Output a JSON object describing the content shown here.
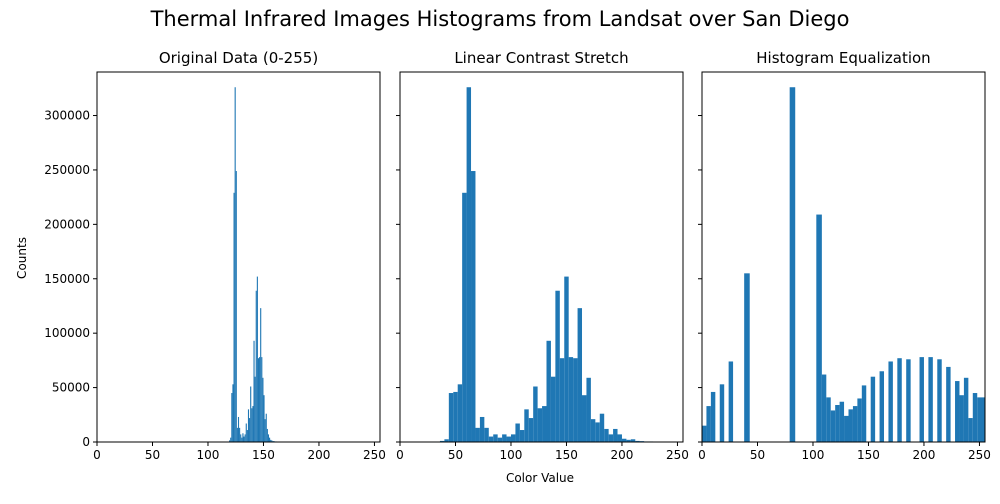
{
  "figure": {
    "suptitle": "Thermal Infrared Images Histograms from Landsat over San Diego",
    "xlabel": "Color Value",
    "ylabel": "Counts",
    "bar_color": "#1f77b4"
  },
  "chart_data": [
    {
      "type": "bar",
      "title": "Original Data (0-255)",
      "xlim": [
        0,
        255
      ],
      "ylim": [
        0,
        340000
      ],
      "xticks": [
        0,
        50,
        100,
        150,
        200,
        250
      ],
      "yticks": [
        0,
        50000,
        100000,
        150000,
        200000,
        250000,
        300000
      ],
      "ytick_labels": [
        "0",
        "50000",
        "100000",
        "150000",
        "200000",
        "250000",
        "300000"
      ],
      "bars": [
        [
          119,
          120,
          1500
        ],
        [
          120,
          121,
          4000
        ],
        [
          121,
          122,
          45000
        ],
        [
          122,
          123,
          53000
        ],
        [
          123,
          124,
          229000
        ],
        [
          124,
          125,
          326000
        ],
        [
          125,
          126,
          249000
        ],
        [
          126,
          127,
          13000
        ],
        [
          127,
          128,
          23000
        ],
        [
          128,
          129,
          13000
        ],
        [
          129,
          130,
          7000
        ],
        [
          130,
          131,
          4000
        ],
        [
          131,
          132,
          8000
        ],
        [
          132,
          133,
          5000
        ],
        [
          133,
          134,
          7000
        ],
        [
          134,
          135,
          17000
        ],
        [
          135,
          136,
          11000
        ],
        [
          136,
          137,
          30000
        ],
        [
          137,
          138,
          22000
        ],
        [
          138,
          139,
          51000
        ],
        [
          139,
          140,
          31000
        ],
        [
          140,
          141,
          33000
        ],
        [
          141,
          142,
          93000
        ],
        [
          142,
          143,
          60000
        ],
        [
          143,
          144,
          139000
        ],
        [
          144,
          145,
          152000
        ],
        [
          145,
          146,
          77000
        ],
        [
          146,
          147,
          78000
        ],
        [
          147,
          148,
          123000
        ],
        [
          148,
          149,
          78000
        ],
        [
          149,
          150,
          59000
        ],
        [
          150,
          151,
          43000
        ],
        [
          151,
          152,
          21000
        ],
        [
          152,
          153,
          26000
        ],
        [
          153,
          154,
          12000
        ],
        [
          154,
          155,
          7000
        ],
        [
          155,
          156,
          4000
        ],
        [
          156,
          157,
          2000
        ],
        [
          157,
          158,
          1500
        ],
        [
          158,
          160,
          800
        ],
        [
          160,
          162,
          500
        ],
        [
          162,
          165,
          300
        ]
      ]
    },
    {
      "type": "bar",
      "title": "Linear Contrast Stretch",
      "xlim": [
        0,
        255
      ],
      "ylim": [
        0,
        340000
      ],
      "xticks": [
        0,
        50,
        100,
        150,
        200,
        250
      ],
      "yticks": [
        0,
        50000,
        100000,
        150000,
        200000,
        250000,
        300000
      ],
      "bars": [
        [
          36,
          40,
          1000
        ],
        [
          40,
          44,
          2500
        ],
        [
          44,
          48,
          45000
        ],
        [
          48,
          52,
          46000
        ],
        [
          52,
          56,
          53000
        ],
        [
          56,
          60,
          229000
        ],
        [
          60,
          64,
          326000
        ],
        [
          64,
          68,
          249000
        ],
        [
          68,
          72,
          13000
        ],
        [
          72,
          76,
          23000
        ],
        [
          76,
          80,
          13000
        ],
        [
          80,
          84,
          5000
        ],
        [
          84,
          88,
          7000
        ],
        [
          88,
          92,
          4000
        ],
        [
          92,
          96,
          7000
        ],
        [
          96,
          100,
          5000
        ],
        [
          100,
          104,
          7000
        ],
        [
          104,
          108,
          17000
        ],
        [
          108,
          112,
          11000
        ],
        [
          112,
          116,
          30000
        ],
        [
          116,
          120,
          22000
        ],
        [
          120,
          124,
          51000
        ],
        [
          124,
          128,
          31000
        ],
        [
          128,
          132,
          33000
        ],
        [
          132,
          136,
          93000
        ],
        [
          136,
          140,
          60000
        ],
        [
          140,
          144,
          139000
        ],
        [
          144,
          148,
          77000
        ],
        [
          148,
          152,
          152000
        ],
        [
          152,
          156,
          78000
        ],
        [
          156,
          160,
          77000
        ],
        [
          160,
          164,
          123000
        ],
        [
          164,
          168,
          43000
        ],
        [
          168,
          172,
          59000
        ],
        [
          172,
          176,
          21000
        ],
        [
          176,
          180,
          18000
        ],
        [
          180,
          184,
          26000
        ],
        [
          184,
          188,
          12000
        ],
        [
          188,
          192,
          7000
        ],
        [
          192,
          196,
          12000
        ],
        [
          196,
          200,
          7000
        ],
        [
          200,
          204,
          3000
        ],
        [
          204,
          208,
          2000
        ],
        [
          208,
          212,
          2500
        ],
        [
          212,
          216,
          1000
        ],
        [
          216,
          220,
          800
        ],
        [
          220,
          228,
          500
        ],
        [
          228,
          236,
          300
        ]
      ]
    },
    {
      "type": "bar",
      "title": "Histogram Equalization",
      "xlim": [
        0,
        255
      ],
      "ylim": [
        0,
        340000
      ],
      "xticks": [
        0,
        50,
        100,
        150,
        200,
        250
      ],
      "yticks": [
        0,
        50000,
        100000,
        150000,
        200000,
        250000,
        300000
      ],
      "bars": [
        [
          0,
          4,
          15000
        ],
        [
          4,
          8,
          33000
        ],
        [
          8,
          12,
          46000
        ],
        [
          16,
          20,
          53000
        ],
        [
          24,
          28,
          74000
        ],
        [
          38,
          43,
          155000
        ],
        [
          79,
          84,
          326000
        ],
        [
          103,
          108,
          209000
        ],
        [
          108,
          112,
          62000
        ],
        [
          112,
          116,
          41000
        ],
        [
          116,
          120,
          29000
        ],
        [
          120,
          124,
          34000
        ],
        [
          124,
          128,
          37000
        ],
        [
          128,
          132,
          24000
        ],
        [
          132,
          136,
          30000
        ],
        [
          136,
          140,
          33000
        ],
        [
          140,
          144,
          40000
        ],
        [
          144,
          148,
          52000
        ],
        [
          152,
          156,
          60000
        ],
        [
          160,
          164,
          65000
        ],
        [
          168,
          172,
          74000
        ],
        [
          176,
          180,
          77000
        ],
        [
          184,
          188,
          76000
        ],
        [
          196,
          200,
          78000
        ],
        [
          204,
          208,
          78000
        ],
        [
          212,
          216,
          76000
        ],
        [
          220,
          224,
          69000
        ],
        [
          228,
          232,
          56000
        ],
        [
          232,
          236,
          43000
        ],
        [
          236,
          240,
          59000
        ],
        [
          240,
          244,
          22000
        ],
        [
          244,
          248,
          45000
        ],
        [
          248,
          255,
          41000
        ]
      ]
    }
  ]
}
